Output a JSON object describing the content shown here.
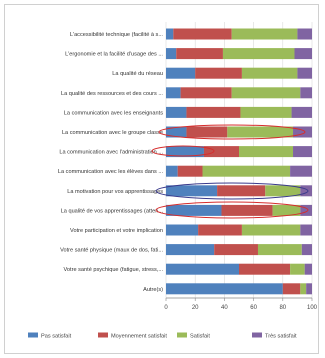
{
  "chart_data": {
    "type": "bar",
    "stacked": "horizontal-100",
    "categories": [
      "L'accessibilité technique (facilité à s...",
      "L'ergonomie et la facilité d'usage des ...",
      "La qualité du réseau",
      "La qualité des ressources et des cours ...",
      "La communication avec les enseignants",
      "La communication avec le groupe classe",
      "La communication avec l'administration ...",
      "La communication avec les élèves dans ...",
      "La motivation pour vos apprentissages",
      "La qualité de vos apprentissages (atten...",
      "Votre participation et votre implication",
      "Votre santé physique (maux de dos, fati...",
      "Votre santé psychique (fatigue, stress,...",
      "Autre(s)"
    ],
    "series": [
      {
        "name": "Pas satisfait",
        "color": "#4f81bd",
        "values": [
          5,
          7,
          20,
          10,
          14,
          14,
          26,
          8,
          35,
          38,
          22,
          33,
          50,
          80
        ]
      },
      {
        "name": "Moyennement satisfait",
        "color": "#c0504d",
        "values": [
          40,
          32,
          32,
          35,
          37,
          28,
          24,
          17,
          33,
          35,
          30,
          30,
          35,
          12
        ]
      },
      {
        "name": "Satisfait",
        "color": "#9bbb59",
        "values": [
          45,
          49,
          38,
          47,
          35,
          45,
          37,
          60,
          24,
          19,
          40,
          30,
          10,
          4
        ]
      },
      {
        "name": "Très satisfait",
        "color": "#8064a2",
        "values": [
          10,
          12,
          10,
          8,
          14,
          13,
          13,
          15,
          8,
          8,
          8,
          7,
          5,
          4
        ]
      }
    ],
    "xlim": [
      0,
      100
    ],
    "xticks": [
      0,
      20,
      40,
      60,
      80,
      100
    ],
    "legend_position": "bottom",
    "annotations": "red and blue hand-drawn ellipses around some rows"
  }
}
